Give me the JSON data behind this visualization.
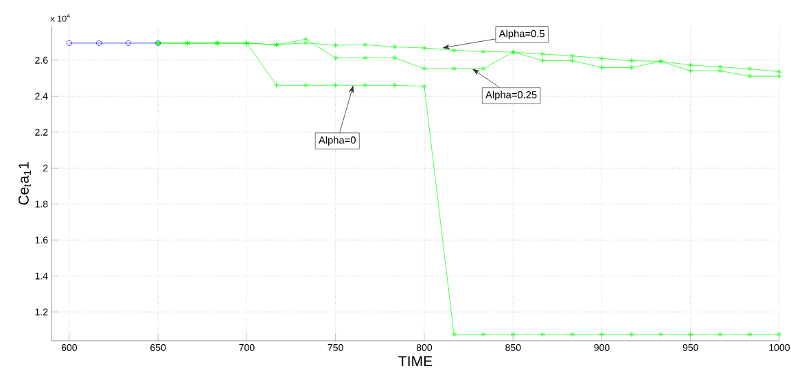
{
  "chart_data": {
    "type": "line",
    "xlabel": "TIME",
    "ylabel": "Ce$_{t}$a$_{1}$1",
    "xlim": [
      590,
      1000
    ],
    "ylim": [
      1.04,
      2.79
    ],
    "xticks": [
      600,
      650,
      700,
      750,
      800,
      850,
      900,
      950,
      1000
    ],
    "yticks": [
      1.2,
      1.4,
      1.6,
      1.8,
      2,
      2.2,
      2.4,
      2.6
    ],
    "grid": true,
    "line_style": "solid",
    "annotations": [
      "x 10$^{4}$",
      {
        "text": "Alpha=0.5",
        "x": 810,
        "y": 2.668
      },
      {
        "text": "Alpha=0.25",
        "x": 827,
        "y": 2.553
      },
      {
        "text": "Alpha=0",
        "x": 760,
        "y": 2.461
      }
    ],
    "series": [
      {
        "color": "#0000ff",
        "marker": "circle",
        "x": [
          600,
          616.7,
          633.3,
          650
        ],
        "values": [
          2.695,
          2.695,
          2.695,
          2.695
        ]
      },
      {
        "color": "#00ff00",
        "marker": "cross",
        "x": [
          650,
          666.7,
          683.3,
          700,
          716.7,
          733.3,
          750,
          766.7,
          783.3,
          800,
          816.7,
          833.3,
          850,
          866.7,
          883.3,
          900,
          916.7,
          933.3,
          950,
          966.7,
          983.3,
          1000
        ],
        "values": [
          2.695,
          2.695,
          2.695,
          2.695,
          2.461,
          2.461,
          2.461,
          2.461,
          2.461,
          2.455,
          1.075,
          1.075,
          1.075,
          1.075,
          1.075,
          1.075,
          1.075,
          1.075,
          1.075,
          1.075,
          1.075,
          1.075
        ]
      },
      {
        "color": "#00ff00",
        "marker": "cross",
        "x": [
          650,
          666.7,
          683.3,
          700,
          716.7,
          733.3,
          750,
          766.7,
          783.3,
          800,
          816.7,
          833.3,
          850,
          866.7,
          883.3,
          900,
          916.7,
          933.3,
          950,
          966.7,
          983.3,
          1000
        ],
        "values": [
          2.695,
          2.695,
          2.695,
          2.695,
          2.686,
          2.717,
          2.613,
          2.613,
          2.613,
          2.553,
          2.553,
          2.553,
          2.645,
          2.598,
          2.598,
          2.559,
          2.559,
          2.594,
          2.541,
          2.541,
          2.511,
          2.511
        ]
      },
      {
        "color": "#00ff00",
        "marker": "cross",
        "x": [
          650,
          666.7,
          683.3,
          700,
          716.7,
          733.3,
          750,
          766.7,
          783.3,
          800,
          816.7,
          833.3,
          850,
          866.7,
          883.3,
          900,
          916.7,
          933.3,
          950,
          966.7,
          983.3,
          1000
        ],
        "values": [
          2.695,
          2.695,
          2.695,
          2.695,
          2.686,
          2.696,
          2.683,
          2.686,
          2.674,
          2.668,
          2.655,
          2.648,
          2.645,
          2.634,
          2.624,
          2.61,
          2.597,
          2.594,
          2.573,
          2.563,
          2.552,
          2.536
        ]
      }
    ]
  }
}
